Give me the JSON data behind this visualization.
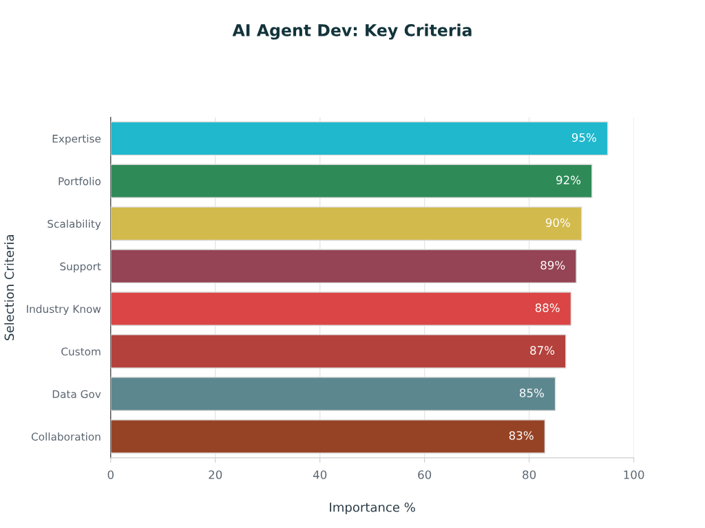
{
  "chart_data": {
    "type": "bar",
    "orientation": "horizontal",
    "title": "AI Agent Dev: Key Criteria",
    "xlabel": "Importance %",
    "ylabel": "Selection Criteria",
    "categories": [
      "Expertise",
      "Portfolio",
      "Scalability",
      "Support",
      "Industry Know",
      "Custom",
      "Data Gov",
      "Collaboration"
    ],
    "values": [
      95,
      92,
      90,
      89,
      88,
      87,
      85,
      83
    ],
    "colors": [
      "#1fb8cd",
      "#2e8b57",
      "#d2ba4c",
      "#944454",
      "#db4545",
      "#b4413c",
      "#5d878f",
      "#964325"
    ],
    "value_labels": [
      "95%",
      "92%",
      "90%",
      "89%",
      "88%",
      "87%",
      "85%",
      "83%"
    ],
    "xlim": [
      0,
      100
    ],
    "xticks": [
      0,
      20,
      40,
      60,
      80,
      100
    ],
    "grid": "x",
    "legend": false
  }
}
